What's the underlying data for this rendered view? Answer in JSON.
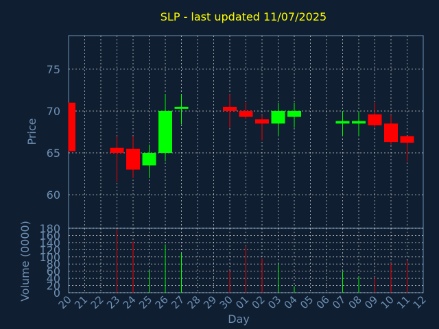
{
  "chart_data": [
    {
      "type": "candlestick",
      "title": "SLP - last updated 11/07/2025",
      "xlabel": "Day",
      "ylabel": "Price",
      "ylim": [
        56,
        79
      ],
      "yticks": [
        60,
        65,
        70,
        75
      ],
      "x_categories": [
        "20",
        "21",
        "22",
        "23",
        "24",
        "25",
        "26",
        "27",
        "28",
        "29",
        "30",
        "01",
        "02",
        "03",
        "04",
        "05",
        "06",
        "07",
        "08",
        "09",
        "10",
        "11",
        "12"
      ],
      "grid": true,
      "colors": {
        "up": "#00ff00",
        "down": "#ff0000",
        "grid": "#ffffff",
        "axis": "#6f91b5",
        "title": "#ffff00",
        "background": "#0f1e30"
      },
      "candles": [
        {
          "day": "20",
          "open": 71.0,
          "high": 71.0,
          "low": 65.2,
          "close": 65.2
        },
        {
          "day": "23",
          "open": 65.6,
          "high": 67.0,
          "low": 61.5,
          "close": 65.0
        },
        {
          "day": "24",
          "open": 65.5,
          "high": 67.0,
          "low": 62.0,
          "close": 63.0
        },
        {
          "day": "25",
          "open": 63.5,
          "high": 66.0,
          "low": 62.0,
          "close": 65.0
        },
        {
          "day": "26",
          "open": 65.0,
          "high": 72.0,
          "low": 64.0,
          "close": 70.0
        },
        {
          "day": "27",
          "open": 70.3,
          "high": 72.0,
          "low": 68.4,
          "close": 70.5
        },
        {
          "day": "30",
          "open": 70.5,
          "high": 72.0,
          "low": 68.0,
          "close": 70.0
        },
        {
          "day": "01",
          "open": 70.0,
          "high": 71.0,
          "low": 69.0,
          "close": 69.3
        },
        {
          "day": "02",
          "open": 69.0,
          "high": 69.5,
          "low": 66.5,
          "close": 68.5
        },
        {
          "day": "03",
          "open": 68.5,
          "high": 71.0,
          "low": 67.0,
          "close": 70.0
        },
        {
          "day": "04",
          "open": 69.3,
          "high": 71.0,
          "low": 68.0,
          "close": 70.0
        },
        {
          "day": "07",
          "open": 68.5,
          "high": 70.0,
          "low": 67.0,
          "close": 68.8
        },
        {
          "day": "08",
          "open": 68.5,
          "high": 70.0,
          "low": 67.0,
          "close": 68.8
        },
        {
          "day": "09",
          "open": 69.6,
          "high": 71.0,
          "low": 68.0,
          "close": 68.3
        },
        {
          "day": "10",
          "open": 68.5,
          "high": 69.5,
          "low": 66.0,
          "close": 66.3
        },
        {
          "day": "11",
          "open": 67.0,
          "high": 67.0,
          "low": 64.0,
          "close": 66.2
        }
      ]
    },
    {
      "type": "bar",
      "ylabel": "Volume (0000)",
      "ylim": [
        0,
        180
      ],
      "yticks": [
        0,
        20,
        40,
        60,
        80,
        100,
        120,
        140,
        160,
        180
      ],
      "x_categories": [
        "20",
        "21",
        "22",
        "23",
        "24",
        "25",
        "26",
        "27",
        "28",
        "29",
        "30",
        "01",
        "02",
        "03",
        "04",
        "05",
        "06",
        "07",
        "08",
        "09",
        "10",
        "11",
        "12"
      ],
      "grid": true,
      "bars": [
        {
          "day": "23",
          "value": 178,
          "color": "#ff0000"
        },
        {
          "day": "24",
          "value": 143,
          "color": "#ff0000"
        },
        {
          "day": "25",
          "value": 62,
          "color": "#00ff00"
        },
        {
          "day": "26",
          "value": 135,
          "color": "#00ff00"
        },
        {
          "day": "27",
          "value": 110,
          "color": "#00ff00"
        },
        {
          "day": "30",
          "value": 62,
          "color": "#ff0000"
        },
        {
          "day": "01",
          "value": 130,
          "color": "#ff0000"
        },
        {
          "day": "02",
          "value": 96,
          "color": "#ff0000"
        },
        {
          "day": "03",
          "value": 78,
          "color": "#00ff00"
        },
        {
          "day": "04",
          "value": 18,
          "color": "#00ff00"
        },
        {
          "day": "07",
          "value": 60,
          "color": "#00ff00"
        },
        {
          "day": "08",
          "value": 45,
          "color": "#00ff00"
        },
        {
          "day": "09",
          "value": 43,
          "color": "#ff0000"
        },
        {
          "day": "10",
          "value": 82,
          "color": "#ff0000"
        },
        {
          "day": "11",
          "value": 90,
          "color": "#ff0000"
        }
      ]
    }
  ]
}
